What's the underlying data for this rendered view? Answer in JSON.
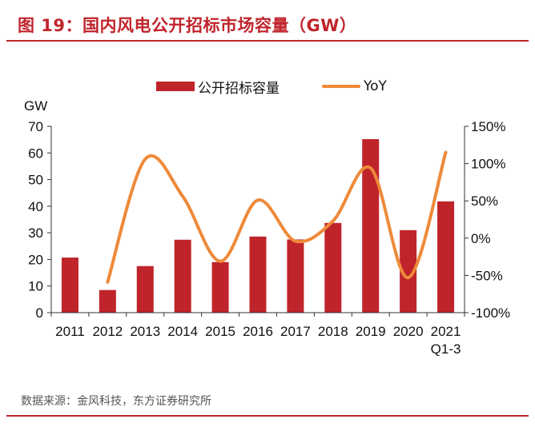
{
  "title": "图 19：国内风电公开招标市场容量（GW）",
  "source": "数据来源：金风科技，东方证券研究所",
  "colors": {
    "accent": "#c0242b",
    "bar": "#c0242b",
    "line": "#ee8a3a"
  },
  "chart_data": {
    "type": "bar",
    "categories": [
      "2011",
      "2012",
      "2013",
      "2014",
      "2015",
      "2016",
      "2017",
      "2018",
      "2019",
      "2020",
      "2021"
    ],
    "category_sublabels": [
      "",
      "",
      "",
      "",
      "",
      "",
      "",
      "",
      "",
      "",
      "Q1-3"
    ],
    "series": [
      {
        "name": "公开招标容量",
        "type": "bar",
        "axis": "left",
        "values": [
          20.7,
          8.5,
          17.5,
          27.4,
          19.0,
          28.6,
          27.5,
          33.7,
          65.2,
          31.0,
          41.8
        ]
      },
      {
        "name": "YoY",
        "type": "line",
        "axis": "right",
        "values": [
          null,
          -59,
          106,
          56,
          -31,
          51,
          -4,
          23,
          94,
          -53,
          115
        ]
      }
    ],
    "ylabel": "GW",
    "ylim": [
      0,
      70
    ],
    "yticks": [
      "0",
      "10",
      "20",
      "30",
      "40",
      "50",
      "60",
      "70"
    ],
    "y2lim": [
      -100,
      150
    ],
    "y2ticks": [
      "-100%",
      "-50%",
      "0%",
      "50%",
      "100%",
      "150%"
    ],
    "legend": "top-center",
    "grid": false
  }
}
